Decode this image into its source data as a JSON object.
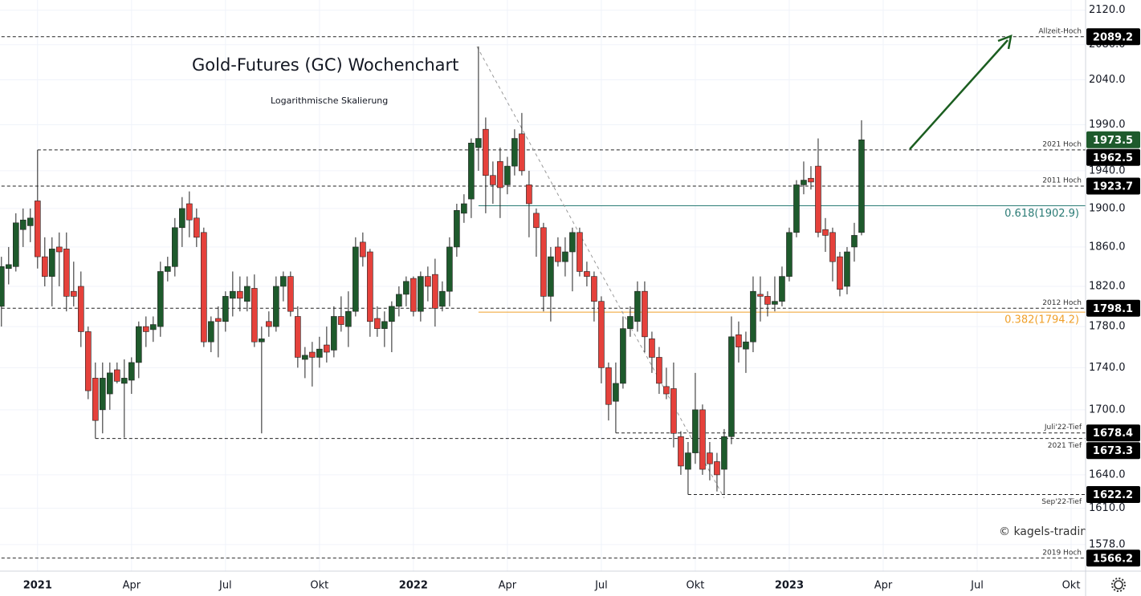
{
  "chart_data": {
    "type": "candlestick",
    "title": "Gold-Futures (GC) Wochenchart",
    "subtitle": "Logarithmische Skalierung",
    "watermark": "© kagels-tradin",
    "log_scale": true,
    "grid": true,
    "up_color": "#1e5a2c",
    "down_color": "#e5413b",
    "xlim": [
      -0.2,
      150
    ],
    "xticks": [
      {
        "value": 5,
        "label": "2021"
      },
      {
        "value": 18,
        "label": "Apr"
      },
      {
        "value": 31,
        "label": "Jul"
      },
      {
        "value": 44,
        "label": "Okt"
      },
      {
        "value": 57,
        "label": "2022"
      },
      {
        "value": 70,
        "label": "Apr"
      },
      {
        "value": 83,
        "label": "Jul"
      },
      {
        "value": 96,
        "label": "Okt"
      },
      {
        "value": 109,
        "label": "2023"
      },
      {
        "value": 122,
        "label": "Apr"
      },
      {
        "value": 135,
        "label": "Jul"
      },
      {
        "value": 148,
        "label": "Okt"
      }
    ],
    "ylim": [
      1555,
      2132
    ],
    "yticks": [
      {
        "value": 2120,
        "label": "2120.0"
      },
      {
        "value": 2080,
        "label": "2080.0"
      },
      {
        "value": 2040,
        "label": "2040.0"
      },
      {
        "value": 1990,
        "label": "1990.0"
      },
      {
        "value": 1940,
        "label": "1940.0"
      },
      {
        "value": 1900,
        "label": "1900.0"
      },
      {
        "value": 1860,
        "label": "1860.0"
      },
      {
        "value": 1820,
        "label": "1820.0"
      },
      {
        "value": 1780,
        "label": "1780.0"
      },
      {
        "value": 1740,
        "label": "1740.0"
      },
      {
        "value": 1700,
        "label": "1700.0"
      },
      {
        "value": 1640,
        "label": "1640.0"
      },
      {
        "value": 1610,
        "label": "1610.0"
      },
      {
        "value": 1578,
        "label": "1578.0"
      }
    ],
    "open": [
      1800,
      1838,
      1840,
      1878,
      1882,
      1908,
      1850,
      1830,
      1860,
      1858,
      1815,
      1820,
      1775,
      1730,
      1700,
      1715,
      1738,
      1725,
      1728,
      1745,
      1780,
      1777,
      1780,
      1835,
      1840,
      1880,
      1905,
      1890,
      1875,
      1765,
      1788,
      1785,
      1808,
      1815,
      1805,
      1818,
      1765,
      1785,
      1780,
      1820,
      1830,
      1790,
      1748,
      1755,
      1750,
      1762,
      1757,
      1790,
      1780,
      1795,
      1865,
      1855,
      1788,
      1778,
      1785,
      1800,
      1812,
      1828,
      1795,
      1830,
      1832,
      1800,
      1815,
      1860,
      1895,
      1910,
      1965,
      1985,
      1935,
      1950,
      1925,
      1945,
      1980,
      1925,
      1895,
      1880,
      1810,
      1860,
      1845,
      1855,
      1875,
      1835,
      1830,
      1805,
      1740,
      1708,
      1725,
      1778,
      1785,
      1815,
      1768,
      1750,
      1722,
      1720,
      1675,
      1645,
      1660,
      1700,
      1660,
      1652,
      1645,
      1675,
      1772,
      1758,
      1765,
      1812,
      1810,
      1802,
      1805,
      1830,
      1875,
      1925,
      1932,
      1945,
      1878,
      1875,
      1850,
      1820,
      1860,
      1875
    ],
    "high": [
      1850,
      1860,
      1895,
      1900,
      1900,
      1962.5,
      1870,
      1870,
      1875,
      1875,
      1845,
      1835,
      1780,
      1745,
      1745,
      1745,
      1745,
      1748,
      1750,
      1785,
      1790,
      1790,
      1845,
      1850,
      1890,
      1912,
      1918,
      1900,
      1880,
      1790,
      1800,
      1815,
      1835,
      1830,
      1830,
      1832,
      1780,
      1795,
      1830,
      1835,
      1835,
      1800,
      1760,
      1765,
      1770,
      1780,
      1800,
      1810,
      1815,
      1870,
      1875,
      1858,
      1800,
      1795,
      1805,
      1820,
      1830,
      1830,
      1835,
      1840,
      1848,
      1825,
      1870,
      1905,
      1915,
      1975,
      2078,
      1998,
      1950,
      1965,
      1955,
      1985,
      2003,
      1940,
      1900,
      1885,
      1860,
      1870,
      1870,
      1880,
      1880,
      1845,
      1835,
      1810,
      1745,
      1745,
      1790,
      1800,
      1825,
      1825,
      1775,
      1760,
      1740,
      1745,
      1680,
      1670,
      1735,
      1705,
      1670,
      1660,
      1682,
      1790,
      1785,
      1775,
      1830,
      1830,
      1815,
      1830,
      1840,
      1880,
      1930,
      1950,
      1945,
      1975,
      1890,
      1880,
      1855,
      1860,
      1885,
      1995
    ],
    "low": [
      1780,
      1822,
      1835,
      1860,
      1865,
      1838,
      1820,
      1800,
      1820,
      1795,
      1800,
      1760,
      1710,
      1673.3,
      1678,
      1700,
      1725,
      1674,
      1715,
      1730,
      1760,
      1765,
      1770,
      1825,
      1830,
      1860,
      1870,
      1860,
      1760,
      1755,
      1750,
      1775,
      1790,
      1795,
      1795,
      1760,
      1678,
      1770,
      1775,
      1805,
      1790,
      1740,
      1730,
      1722,
      1740,
      1745,
      1750,
      1775,
      1760,
      1790,
      1840,
      1770,
      1770,
      1760,
      1755,
      1790,
      1800,
      1790,
      1785,
      1805,
      1780,
      1795,
      1800,
      1850,
      1885,
      1890,
      1940,
      1895,
      1905,
      1890,
      1915,
      1935,
      1935,
      1870,
      1850,
      1795,
      1785,
      1840,
      1830,
      1815,
      1830,
      1820,
      1785,
      1725,
      1690,
      1678.4,
      1720,
      1770,
      1775,
      1755,
      1735,
      1715,
      1710,
      1665,
      1640,
      1622.2,
      1650,
      1640,
      1635,
      1625,
      1622.2,
      1668,
      1745,
      1735,
      1755,
      1785,
      1790,
      1795,
      1800,
      1825,
      1870,
      1915,
      1920,
      1870,
      1855,
      1825,
      1810,
      1812,
      1845,
      1872
    ],
    "close": [
      1840,
      1842,
      1885,
      1888,
      1890,
      1850,
      1830,
      1858,
      1855,
      1810,
      1810,
      1775,
      1718,
      1690,
      1730,
      1735,
      1727,
      1730,
      1745,
      1780,
      1775,
      1782,
      1835,
      1840,
      1880,
      1900,
      1888,
      1870,
      1765,
      1785,
      1785,
      1810,
      1815,
      1808,
      1820,
      1765,
      1768,
      1780,
      1820,
      1830,
      1795,
      1750,
      1752,
      1750,
      1758,
      1755,
      1790,
      1782,
      1795,
      1860,
      1850,
      1785,
      1778,
      1785,
      1800,
      1812,
      1825,
      1795,
      1830,
      1820,
      1798,
      1815,
      1860,
      1898,
      1905,
      1970,
      1975,
      1935,
      1925,
      1922,
      1945,
      1975,
      1940,
      1905,
      1880,
      1810,
      1850,
      1845,
      1855,
      1875,
      1835,
      1830,
      1805,
      1740,
      1705,
      1725,
      1778,
      1790,
      1815,
      1770,
      1750,
      1725,
      1715,
      1678,
      1648,
      1660,
      1700,
      1645,
      1650,
      1640,
      1675,
      1770,
      1760,
      1765,
      1815,
      1810,
      1802,
      1805,
      1830,
      1875,
      1925,
      1930,
      1928,
      1875,
      1872,
      1845,
      1817,
      1855,
      1872,
      1973.5
    ],
    "levels": [
      {
        "label": "Allzeit-Hoch",
        "value": 2089.2
      },
      {
        "label": "2021 Hoch",
        "value": 1962.5
      },
      {
        "label": "2011 Hoch",
        "value": 1923.7
      },
      {
        "label": "2012 Hoch",
        "value": 1798.1
      },
      {
        "label": "Juli'22-Tief",
        "value": 1678.4
      },
      {
        "label": "2021 Tief",
        "value": 1673.3
      },
      {
        "label": "Sep'22-Tief",
        "value": 1622.2
      },
      {
        "label": "2019 Hoch",
        "value": 1566.2
      }
    ],
    "fibonacci": [
      {
        "label": "0.618(1902.9)",
        "value": 1902.9,
        "color": "#2b7c76"
      },
      {
        "label": "0.382(1794.2)",
        "value": 1794.2,
        "color": "#f0a02a"
      }
    ]
  }
}
